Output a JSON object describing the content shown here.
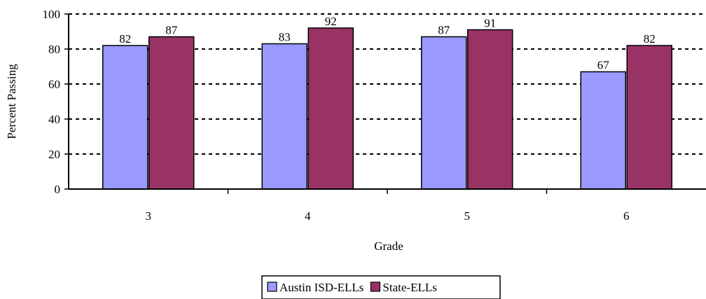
{
  "chart_data": {
    "type": "bar",
    "title": "",
    "xlabel": "Grade",
    "ylabel": "Percent Passing",
    "categories": [
      "3",
      "4",
      "5",
      "6"
    ],
    "series": [
      {
        "name": "Austin ISD-ELLs",
        "values": [
          82,
          83,
          87,
          67
        ],
        "color": "#9999ff"
      },
      {
        "name": "State-ELLs",
        "values": [
          87,
          92,
          91,
          82
        ],
        "color": "#993366"
      }
    ],
    "ylim": [
      0,
      100
    ],
    "yticks": [
      "0",
      "20",
      "40",
      "60",
      "80",
      "100"
    ],
    "grid": "dashed-horizontal",
    "legend_position": "bottom"
  }
}
